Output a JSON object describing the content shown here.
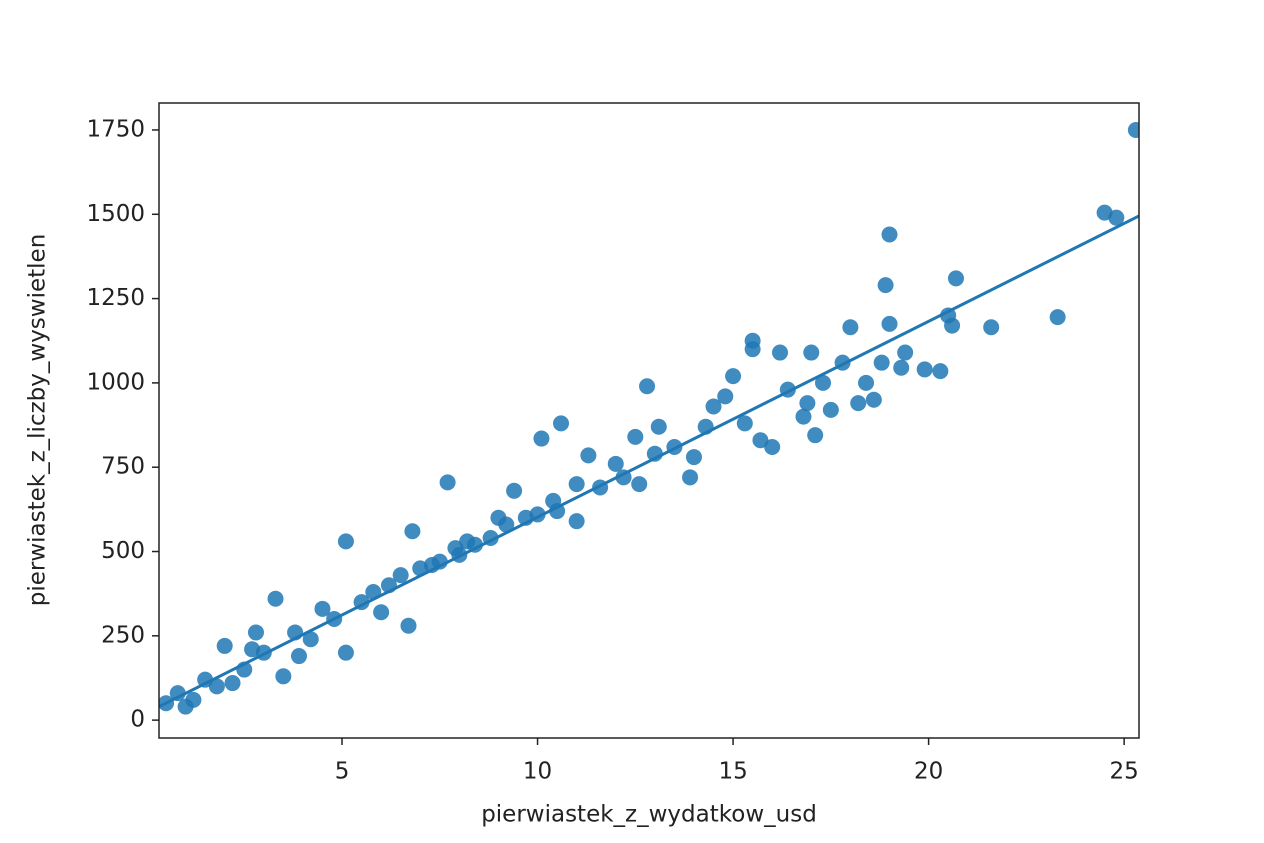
{
  "chart_data": {
    "type": "scatter",
    "x_label": "pierwiastek_z_wydatkow_usd",
    "y_label": "pierwiastek_z_liczby_wyswietlen",
    "xlim": [
      0.32,
      25.38
    ],
    "ylim": [
      -53,
      1830
    ],
    "xticks": [
      5,
      10,
      15,
      20,
      25
    ],
    "yticks": [
      0,
      250,
      500,
      750,
      1000,
      1250,
      1500,
      1750
    ],
    "color": "#1f77b4",
    "series": [
      {
        "x": [
          25.3,
          24.5,
          24.8,
          19.0,
          18.9,
          20.7,
          20.5,
          20.6,
          21.6,
          23.3,
          19.0,
          18.0,
          12.8,
          7.7,
          10.6,
          10.1,
          15.5,
          15.5,
          17.1,
          18.6,
          18.2,
          19.3,
          19.9,
          20.3,
          18.8,
          19.4,
          17.0,
          16.2,
          15.0,
          14.5,
          13.1,
          12.5,
          11.3,
          13.9,
          12.6,
          14.0,
          16.0,
          15.7,
          16.8,
          16.9,
          17.3,
          17.8,
          11.0,
          10.5,
          9.0,
          8.4,
          9.4,
          8.0,
          7.3,
          6.8,
          6.7,
          5.1,
          5.1,
          4.2,
          3.3,
          2.7,
          2.0,
          1.5,
          1.2,
          0.8,
          0.5,
          1.0,
          3.5,
          4.5,
          5.5,
          6.2,
          7.0,
          7.9,
          8.8,
          9.7,
          10.4,
          11.6,
          12.0,
          13.5,
          14.3,
          2.5,
          3.0,
          2.2,
          1.8,
          3.8,
          4.8,
          5.8,
          6.5,
          7.5,
          8.2,
          9.2,
          10.0,
          11.0,
          12.2,
          13.0,
          14.8,
          15.3,
          16.4,
          17.5,
          18.4,
          6.0,
          3.9,
          2.8
        ],
        "values": [
          1750,
          1505,
          1490,
          1440,
          1290,
          1310,
          1200,
          1170,
          1165,
          1195,
          1175,
          1165,
          990,
          705,
          880,
          835,
          1125,
          1100,
          845,
          950,
          940,
          1045,
          1040,
          1035,
          1060,
          1090,
          1090,
          1090,
          1020,
          930,
          870,
          840,
          785,
          720,
          700,
          780,
          810,
          830,
          900,
          940,
          1000,
          1060,
          590,
          620,
          600,
          520,
          680,
          490,
          460,
          560,
          280,
          530,
          200,
          240,
          360,
          210,
          220,
          120,
          60,
          80,
          50,
          40,
          130,
          330,
          350,
          400,
          450,
          510,
          540,
          600,
          650,
          690,
          760,
          810,
          870,
          150,
          200,
          110,
          100,
          260,
          300,
          380,
          430,
          470,
          530,
          580,
          610,
          700,
          720,
          790,
          960,
          880,
          980,
          920,
          1000,
          320,
          190,
          260
        ]
      }
    ],
    "regression_line": {
      "x": [
        0.32,
        25.38
      ],
      "values": [
        40,
        1495
      ]
    }
  }
}
